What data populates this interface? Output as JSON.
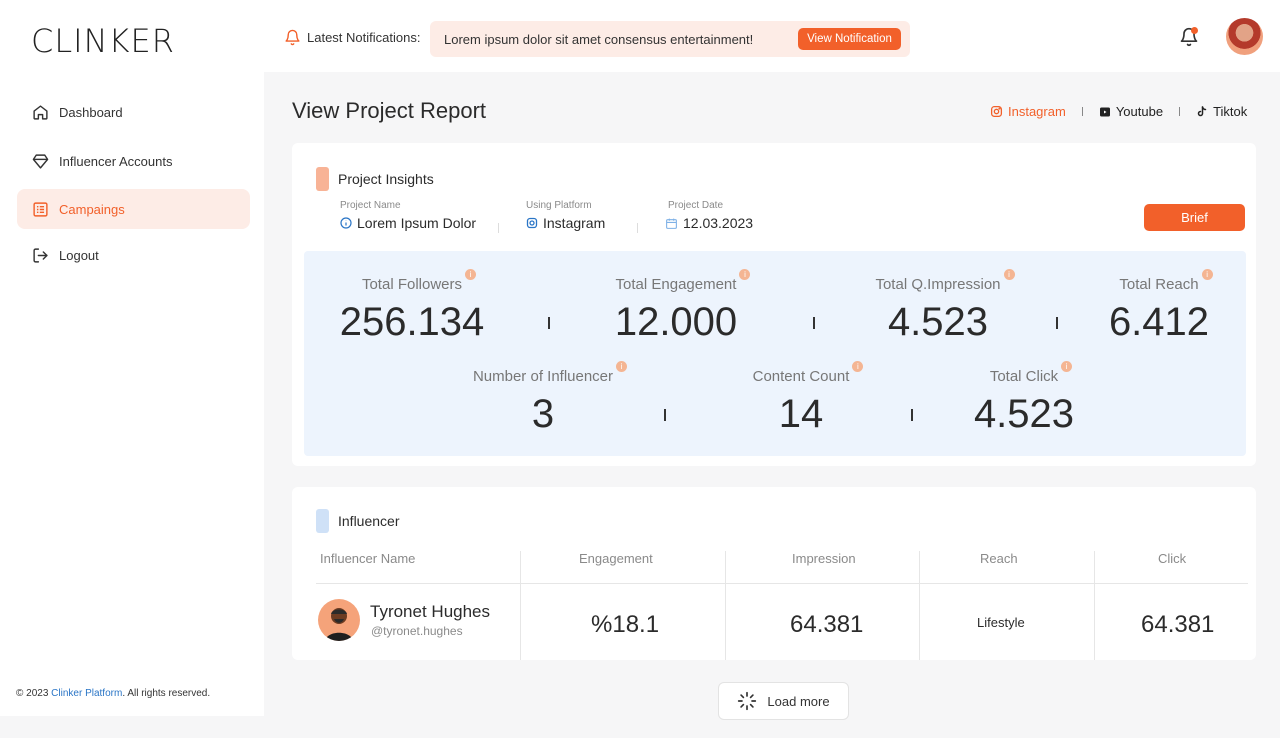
{
  "brand": {
    "logo_text": "CLINKER",
    "accent": "#f2602a"
  },
  "header": {
    "notifications_label": "Latest Notifications:",
    "notification_text": "Lorem ipsum dolor sit amet consensus entertainment!",
    "view_notification_label": "View Notification"
  },
  "sidebar": {
    "items": [
      {
        "label": "Dashboard",
        "icon": "home-icon",
        "active": false
      },
      {
        "label": "Influencer Accounts",
        "icon": "diamond-icon",
        "active": false
      },
      {
        "label": "Campaings",
        "icon": "list-icon",
        "active": true
      },
      {
        "label": "Logout",
        "icon": "logout-icon",
        "active": false
      }
    ],
    "footer_prefix": "© 2023 ",
    "footer_link": "Clinker Platform",
    "footer_suffix": ". All rights reserved."
  },
  "page": {
    "title": "View Project Report",
    "platform_tabs": [
      {
        "label": "Instagram",
        "active": true
      },
      {
        "label": "Youtube",
        "active": false
      },
      {
        "label": "Tiktok",
        "active": false
      }
    ]
  },
  "insights": {
    "section_title": "Project Insights",
    "project_name_label": "Project Name",
    "project_name": "Lorem Ipsum Dolor",
    "platform_label": "Using Platform",
    "platform": "Instagram",
    "date_label": "Project Date",
    "date": "12.03.2023",
    "brief_label": "Brief",
    "stats_row1": [
      {
        "label": "Total Followers",
        "value": "256.134"
      },
      {
        "label": "Total Engagement",
        "value": "12.000"
      },
      {
        "label": "Total Q.Impression",
        "value": "4.523"
      },
      {
        "label": "Total Reach",
        "value": "6.412"
      }
    ],
    "stats_row2": [
      {
        "label": "Number of Influencer",
        "value": "3"
      },
      {
        "label": "Content Count",
        "value": "14"
      },
      {
        "label": "Total Click",
        "value": "4.523"
      }
    ]
  },
  "influencer": {
    "section_title": "Influencer",
    "columns": [
      "Influencer Name",
      "Engagement",
      "Impression",
      "Reach",
      "Click"
    ],
    "rows": [
      {
        "name": "Tyronet Hughes",
        "handle": "@tyronet.hughes",
        "engagement": "%18.1",
        "impression": "64.381",
        "reach": "Lifestyle",
        "click": "64.381"
      }
    ]
  },
  "load_more_label": "Load more"
}
